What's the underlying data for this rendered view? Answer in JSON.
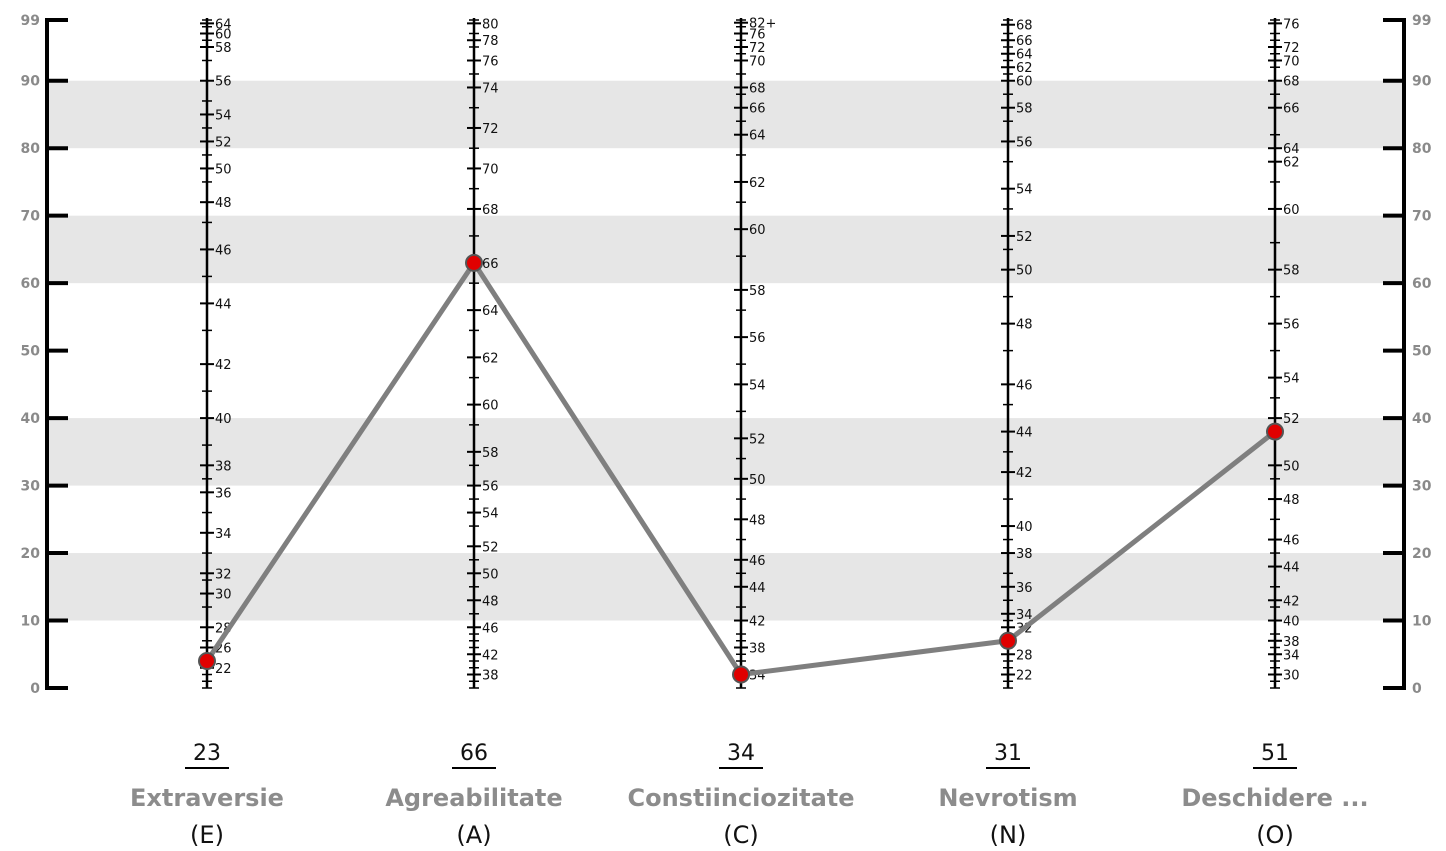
{
  "chart_data": {
    "type": "line",
    "ylim": [
      0,
      99
    ],
    "left_axis_ticks": [
      "0",
      "10",
      "20",
      "30",
      "40",
      "50",
      "60",
      "70",
      "80",
      "90",
      "99"
    ],
    "right_axis_ticks": [
      "0",
      "10",
      "20",
      "30",
      "40",
      "50",
      "60",
      "70",
      "80",
      "90",
      "99"
    ],
    "shaded_bands": [
      [
        10,
        20
      ],
      [
        30,
        40
      ],
      [
        60,
        70
      ],
      [
        80,
        90
      ]
    ],
    "grid": false,
    "line_color": "#7f7f7f",
    "marker_color": "#e00000",
    "categories": [
      {
        "name": "Extraversie",
        "code": "(E)",
        "score": "23",
        "percentile": 4,
        "scale": [
          {
            "label": "22",
            "p": 3
          },
          {
            "label": "26",
            "p": 6
          },
          {
            "label": "28",
            "p": 9
          },
          {
            "label": "30",
            "p": 14
          },
          {
            "label": "32",
            "p": 17
          },
          {
            "label": "34",
            "p": 23
          },
          {
            "label": "36",
            "p": 29
          },
          {
            "label": "38",
            "p": 33
          },
          {
            "label": "40",
            "p": 40
          },
          {
            "label": "42",
            "p": 48
          },
          {
            "label": "44",
            "p": 57
          },
          {
            "label": "46",
            "p": 65
          },
          {
            "label": "48",
            "p": 72
          },
          {
            "label": "50",
            "p": 77
          },
          {
            "label": "52",
            "p": 81
          },
          {
            "label": "54",
            "p": 85
          },
          {
            "label": "56",
            "p": 90
          },
          {
            "label": "58",
            "p": 95
          },
          {
            "label": "60",
            "p": 97
          },
          {
            "label": "64",
            "p": 98.5
          }
        ],
        "minor": [
          0,
          1,
          2,
          5,
          7,
          12,
          16,
          20,
          26,
          31,
          36,
          44,
          53,
          61,
          69,
          75,
          79,
          83,
          87,
          93,
          96,
          98,
          99
        ]
      },
      {
        "name": "Agreabilitate",
        "code": "(A)",
        "score": "66",
        "percentile": 63,
        "scale": [
          {
            "label": "38",
            "p": 2
          },
          {
            "label": "42",
            "p": 5
          },
          {
            "label": "46",
            "p": 9
          },
          {
            "label": "48",
            "p": 13
          },
          {
            "label": "50",
            "p": 17
          },
          {
            "label": "52",
            "p": 21
          },
          {
            "label": "54",
            "p": 26
          },
          {
            "label": "56",
            "p": 30
          },
          {
            "label": "58",
            "p": 35
          },
          {
            "label": "60",
            "p": 42
          },
          {
            "label": "62",
            "p": 49
          },
          {
            "label": "64",
            "p": 56
          },
          {
            "label": "66",
            "p": 63
          },
          {
            "label": "68",
            "p": 71
          },
          {
            "label": "70",
            "p": 77
          },
          {
            "label": "72",
            "p": 83
          },
          {
            "label": "74",
            "p": 89
          },
          {
            "label": "76",
            "p": 93
          },
          {
            "label": "78",
            "p": 96
          },
          {
            "label": "80",
            "p": 98.5
          }
        ],
        "minor": [
          0,
          1,
          3,
          4,
          6,
          7,
          8,
          11,
          15,
          19,
          24,
          28,
          33,
          39,
          46,
          53,
          60,
          67,
          74,
          80,
          86,
          91,
          95,
          97,
          99
        ]
      },
      {
        "name": "Constiinciozitate",
        "code": "(C)",
        "score": "34",
        "percentile": 2,
        "scale": [
          {
            "label": "34",
            "p": 2
          },
          {
            "label": "38",
            "p": 6
          },
          {
            "label": "42",
            "p": 10
          },
          {
            "label": "44",
            "p": 15
          },
          {
            "label": "46",
            "p": 19
          },
          {
            "label": "48",
            "p": 25
          },
          {
            "label": "50",
            "p": 31
          },
          {
            "label": "52",
            "p": 37
          },
          {
            "label": "54",
            "p": 45
          },
          {
            "label": "56",
            "p": 52
          },
          {
            "label": "58",
            "p": 59
          },
          {
            "label": "60",
            "p": 68
          },
          {
            "label": "62",
            "p": 75
          },
          {
            "label": "64",
            "p": 82
          },
          {
            "label": "66",
            "p": 86
          },
          {
            "label": "68",
            "p": 89
          },
          {
            "label": "70",
            "p": 93
          },
          {
            "label": "72",
            "p": 95
          },
          {
            "label": "76",
            "p": 97
          },
          {
            "label": "82+",
            "p": 98.6
          }
        ],
        "minor": [
          0,
          1,
          3,
          4,
          5,
          7,
          8,
          12,
          17,
          22,
          28,
          34,
          41,
          48,
          56,
          64,
          72,
          79,
          84,
          88,
          91,
          94,
          96,
          98,
          99
        ]
      },
      {
        "name": "Nevrotism",
        "code": "(N)",
        "score": "31",
        "percentile": 7,
        "scale": [
          {
            "label": "22",
            "p": 2
          },
          {
            "label": "28",
            "p": 5
          },
          {
            "label": "32",
            "p": 9
          },
          {
            "label": "34",
            "p": 11
          },
          {
            "label": "36",
            "p": 15
          },
          {
            "label": "38",
            "p": 20
          },
          {
            "label": "40",
            "p": 24
          },
          {
            "label": "42",
            "p": 32
          },
          {
            "label": "44",
            "p": 38
          },
          {
            "label": "46",
            "p": 45
          },
          {
            "label": "48",
            "p": 54
          },
          {
            "label": "50",
            "p": 62
          },
          {
            "label": "52",
            "p": 67
          },
          {
            "label": "54",
            "p": 74
          },
          {
            "label": "56",
            "p": 81
          },
          {
            "label": "58",
            "p": 86
          },
          {
            "label": "60",
            "p": 90
          },
          {
            "label": "62",
            "p": 92
          },
          {
            "label": "64",
            "p": 94
          },
          {
            "label": "66",
            "p": 96
          },
          {
            "label": "68",
            "p": 98.3
          }
        ],
        "minor": [
          0,
          1,
          3,
          4,
          6,
          7,
          8,
          10,
          13,
          17,
          22,
          28,
          35,
          42,
          50,
          58,
          65,
          71,
          78,
          84,
          88,
          91,
          93,
          95,
          97,
          99
        ]
      },
      {
        "name": "Deschidere ...",
        "code": "(O)",
        "score": "51",
        "percentile": 38,
        "scale": [
          {
            "label": "30",
            "p": 2
          },
          {
            "label": "34",
            "p": 5
          },
          {
            "label": "38",
            "p": 7
          },
          {
            "label": "40",
            "p": 10
          },
          {
            "label": "42",
            "p": 13
          },
          {
            "label": "44",
            "p": 18
          },
          {
            "label": "46",
            "p": 22
          },
          {
            "label": "48",
            "p": 28
          },
          {
            "label": "50",
            "p": 33
          },
          {
            "label": "52",
            "p": 40
          },
          {
            "label": "54",
            "p": 46
          },
          {
            "label": "56",
            "p": 54
          },
          {
            "label": "58",
            "p": 62
          },
          {
            "label": "60",
            "p": 71
          },
          {
            "label": "62",
            "p": 78
          },
          {
            "label": "64",
            "p": 80
          },
          {
            "label": "66",
            "p": 86
          },
          {
            "label": "68",
            "p": 90
          },
          {
            "label": "70",
            "p": 93
          },
          {
            "label": "72",
            "p": 95
          },
          {
            "label": "76",
            "p": 98.5
          }
        ],
        "minor": [
          0,
          1,
          3,
          4,
          6,
          8,
          12,
          15,
          20,
          25,
          31,
          37,
          43,
          50,
          58,
          66,
          75,
          82,
          88,
          92,
          94,
          96,
          97,
          99
        ]
      }
    ]
  }
}
